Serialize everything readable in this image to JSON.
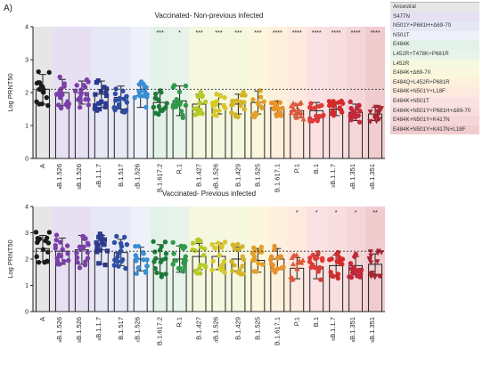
{
  "panel_label": "A)",
  "legend": [
    {
      "label": "Ancestral",
      "color": "#e6e6e6"
    },
    {
      "label": "S477N",
      "color": "#e7e0f3"
    },
    {
      "label": "N501Y+P681H+Δ69-70",
      "color": "#e6e8f6"
    },
    {
      "label": "N501T",
      "color": "#eef1f9"
    },
    {
      "label": "E484K",
      "color": "#e3f2e8"
    },
    {
      "label": "L452R+T478K+P681R",
      "color": "#e8f3ea"
    },
    {
      "label": "L452R",
      "color": "#f5f8df"
    },
    {
      "label": "E484K+Δ69-70",
      "color": "#fbf7dc"
    },
    {
      "label": "E484Q+L452R+P681R",
      "color": "#fdf0dc"
    },
    {
      "label": "E484K+N501Y+L18F",
      "color": "#fde9dd"
    },
    {
      "label": "E484K+N501T",
      "color": "#fbe1e1"
    },
    {
      "label": "E484K+N501Y+P681H+Δ69-70",
      "color": "#f8dede"
    },
    {
      "label": "E484K+N501Y+K417N",
      "color": "#f5d6d8"
    },
    {
      "label": "E484K+N501Y+K417N+L18F",
      "color": "#f0cccf"
    }
  ],
  "chart_data": [
    {
      "type": "scatter",
      "title": "Vaccinated- Non-previous infected",
      "ylabel": "Log PRNT50",
      "ylim": [
        0,
        4
      ],
      "yticks": [
        0,
        1,
        2,
        3,
        4
      ],
      "reference_line": 2.1,
      "categories": [
        "A",
        "B.1.526",
        "B.1.526",
        "B.1.1.7",
        "B.1.517",
        "B.1.526",
        "B.1.617.2",
        "R.1",
        "B.1.427",
        "B.1.526",
        "B.1.429",
        "B.1.525",
        "B.1.617.1",
        "P.1",
        "B.1",
        "B.1.1.7",
        "B.1.351",
        "B.1.351"
      ],
      "superscripts": [
        "",
        "a",
        "b",
        "a",
        "",
        "c",
        "",
        "",
        "",
        "d",
        "",
        "",
        "",
        "",
        "",
        "b",
        "a",
        "b"
      ],
      "means": [
        2.1,
        2.0,
        2.0,
        1.95,
        1.85,
        1.9,
        1.7,
        1.75,
        1.65,
        1.65,
        1.65,
        1.7,
        1.55,
        1.45,
        1.45,
        1.5,
        1.4,
        1.35
      ],
      "sds": [
        0.45,
        0.4,
        0.35,
        0.4,
        0.35,
        0.35,
        0.3,
        0.45,
        0.3,
        0.3,
        0.3,
        0.35,
        0.2,
        0.2,
        0.25,
        0.2,
        0.25,
        0.2
      ],
      "significance": [
        "",
        "",
        "",
        "",
        "",
        "",
        "***",
        "*",
        "***",
        "***",
        "***",
        "***",
        "****",
        "****",
        "****",
        "****",
        "****",
        "****"
      ],
      "colors": [
        "#1a1a1a",
        "#7b3fa8",
        "#7b3fa8",
        "#2b3a8c",
        "#2d4ea3",
        "#3a8ed6",
        "#1f7a3a",
        "#2f9a4a",
        "#b6c92a",
        "#d8c82a",
        "#d4b52a",
        "#e3a02a",
        "#e8922a",
        "#e0583a",
        "#de3b3b",
        "#d42a2a",
        "#c2283a",
        "#a82532"
      ],
      "markers": [
        "circle",
        "circle",
        "circle",
        "square",
        "circle",
        "circle",
        "circle",
        "circle",
        "circle",
        "circle",
        "circle",
        "circle",
        "circle",
        "triangle",
        "circle",
        "circle",
        "circle",
        "triangle-down"
      ]
    },
    {
      "type": "scatter",
      "title": "Vaccinated- Previous infected",
      "ylabel": "Log PRNT50",
      "ylim": [
        0,
        4
      ],
      "yticks": [
        0,
        1,
        2,
        3,
        4
      ],
      "reference_line": 2.3,
      "categories": [
        "A",
        "B.1.526",
        "B.1.526",
        "B.1.1.7",
        "B.1.517",
        "B.1.526",
        "B.1.617.2",
        "R.1",
        "B.1.427",
        "B.1.526",
        "B.1.429",
        "B.1.525",
        "B.1.617.1",
        "P.1",
        "B.1",
        "B.1.1.7",
        "B.1.351",
        "B.1.351"
      ],
      "superscripts": [
        "",
        "a",
        "b",
        "a",
        "",
        "c",
        "",
        "",
        "",
        "d",
        "",
        "",
        "",
        "",
        "",
        "b",
        "a",
        "b"
      ],
      "means": [
        2.4,
        2.3,
        2.35,
        2.35,
        2.25,
        2.0,
        2.0,
        2.0,
        2.1,
        2.1,
        2.0,
        1.95,
        2.0,
        1.65,
        1.7,
        1.75,
        1.75,
        1.8
      ],
      "sds": [
        0.5,
        0.5,
        0.55,
        0.55,
        0.5,
        0.45,
        0.55,
        0.5,
        0.5,
        0.5,
        0.45,
        0.45,
        0.4,
        0.4,
        0.45,
        0.4,
        0.35,
        0.4
      ],
      "significance": [
        "",
        "",
        "",
        "",
        "",
        "",
        "",
        "",
        "",
        "",
        "",
        "",
        "",
        "*",
        "*",
        "*",
        "*",
        "**"
      ],
      "colors": [
        "#1a1a1a",
        "#7b3fa8",
        "#7b3fa8",
        "#2b3a8c",
        "#2d4ea3",
        "#3a8ed6",
        "#1f7a3a",
        "#2f9a4a",
        "#b6c92a",
        "#d8c82a",
        "#d4b52a",
        "#e3a02a",
        "#e8922a",
        "#e0583a",
        "#de3b3b",
        "#d42a2a",
        "#c2283a",
        "#a82532"
      ],
      "markers": [
        "circle",
        "circle",
        "circle",
        "square",
        "circle",
        "circle",
        "circle",
        "circle",
        "circle",
        "circle",
        "circle",
        "circle",
        "circle",
        "triangle",
        "circle",
        "circle",
        "circle",
        "triangle-down"
      ]
    }
  ]
}
